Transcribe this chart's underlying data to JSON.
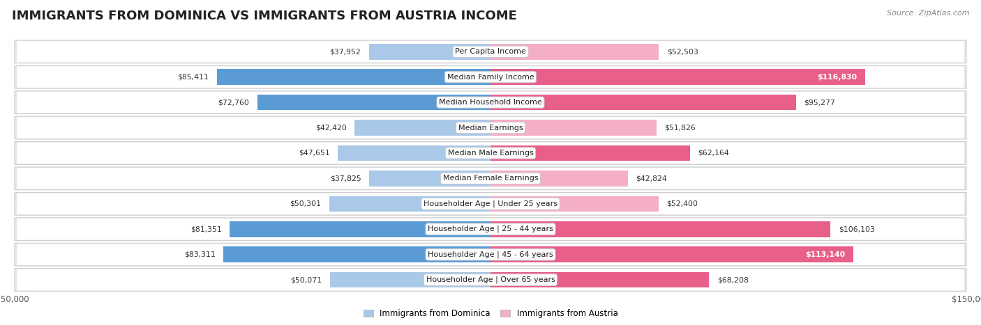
{
  "title": "IMMIGRANTS FROM DOMINICA VS IMMIGRANTS FROM AUSTRIA INCOME",
  "source": "Source: ZipAtlas.com",
  "categories": [
    "Per Capita Income",
    "Median Family Income",
    "Median Household Income",
    "Median Earnings",
    "Median Male Earnings",
    "Median Female Earnings",
    "Householder Age | Under 25 years",
    "Householder Age | 25 - 44 years",
    "Householder Age | 45 - 64 years",
    "Householder Age | Over 65 years"
  ],
  "dominica_values": [
    37952,
    85411,
    72760,
    42420,
    47651,
    37825,
    50301,
    81351,
    83311,
    50071
  ],
  "austria_values": [
    52503,
    116830,
    95277,
    51826,
    62164,
    42824,
    52400,
    106103,
    113140,
    68208
  ],
  "max_value": 150000,
  "dominica_color_light": "#aac9e8",
  "dominica_color_dark": "#5b9bd5",
  "austria_color_light": "#f4aec8",
  "austria_color_dark": "#e8608a",
  "title_fontsize": 13,
  "legend_dominica": "Immigrants from Dominica",
  "legend_austria": "Immigrants from Austria",
  "dark_threshold": 60000
}
